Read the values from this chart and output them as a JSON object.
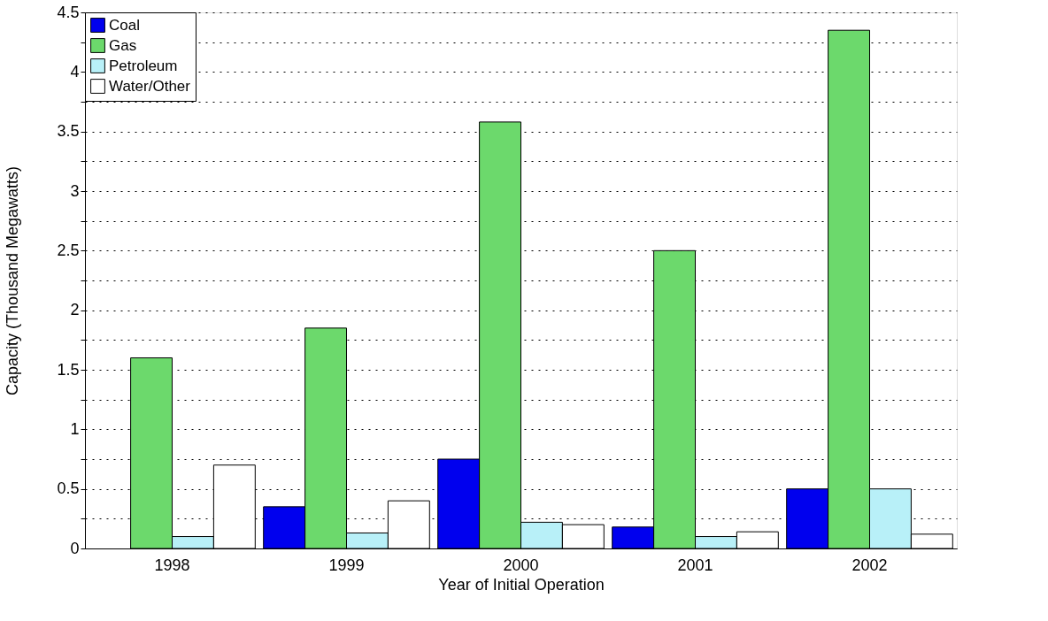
{
  "chart_data": {
    "type": "bar",
    "categories": [
      "1998",
      "1999",
      "2000",
      "2001",
      "2002"
    ],
    "xlabel": "Year of Initial Operation",
    "ylabel": "Capacity (Thousand Megawatts)",
    "series": [
      {
        "name": "Coal",
        "color": "#0000ee",
        "values": [
          null,
          0.35,
          0.75,
          0.18,
          0.5
        ]
      },
      {
        "name": "Gas",
        "color": "#6cd96c",
        "values": [
          1.6,
          1.85,
          3.58,
          2.5,
          4.35
        ]
      },
      {
        "name": "Petroleum",
        "color": "#b8f0f8",
        "values": [
          0.1,
          0.13,
          0.22,
          0.1,
          0.5
        ]
      },
      {
        "name": "Water/Other",
        "color": "#ffffff",
        "values": [
          0.7,
          0.4,
          0.2,
          0.14,
          0.12
        ]
      }
    ],
    "ylim": [
      0,
      4.5
    ],
    "yticks": [
      0,
      {
        "value": 0.25,
        "label": null
      },
      0.5,
      {
        "value": 0.75,
        "label": null
      },
      1,
      {
        "value": 1.25,
        "label": null
      },
      1.5,
      {
        "value": 1.75,
        "label": null
      },
      2,
      {
        "value": 2.25,
        "label": null
      },
      2.5,
      {
        "value": 2.75,
        "label": null
      },
      3,
      {
        "value": 3.25,
        "label": null
      },
      3.5,
      {
        "value": 3.75,
        "label": null
      },
      4,
      {
        "value": 4.25,
        "label": null
      },
      4.5
    ],
    "grid": "y",
    "legend": "top left"
  }
}
